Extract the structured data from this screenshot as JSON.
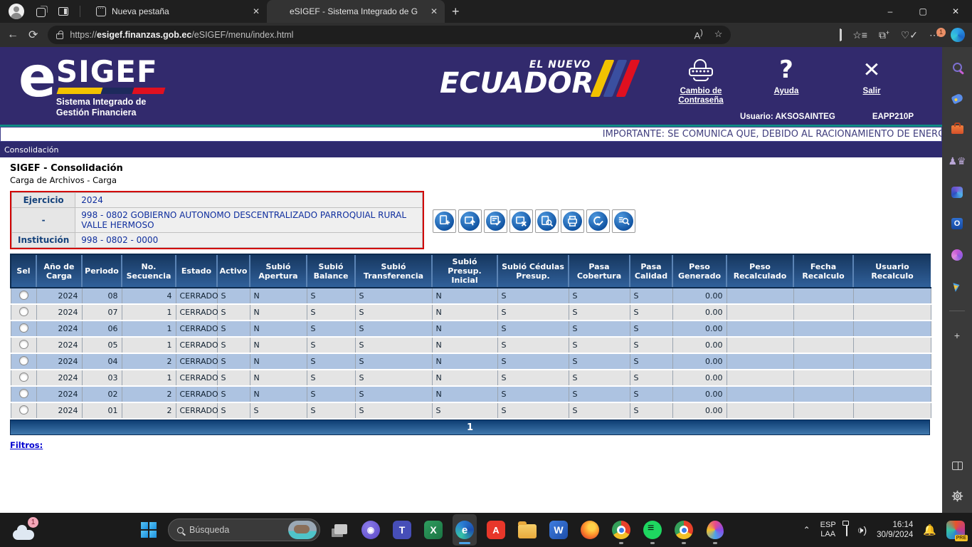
{
  "browser": {
    "tabs": [
      {
        "title": "Nueva pestaña",
        "active": false
      },
      {
        "title": "eSIGEF - Sistema Integrado de G",
        "active": true
      }
    ],
    "url": {
      "prefix": "https://",
      "domain": "esigef.finanzas.gob.ec",
      "path": "/eSIGEF/menu/index.html"
    },
    "settings_badge": "1",
    "window_controls": {
      "minimize": "–",
      "maximize": "▢",
      "close": "✕"
    }
  },
  "edge_sidebar": {
    "items": [
      {
        "name": "search-icon"
      },
      {
        "name": "shopping-icon"
      },
      {
        "name": "toolbox-icon"
      },
      {
        "name": "games-icon"
      },
      {
        "name": "m365-icon"
      },
      {
        "name": "outlook-icon"
      },
      {
        "name": "drop-icon"
      },
      {
        "name": "plane-icon"
      }
    ],
    "add_label": "+",
    "outlook_letter": "O"
  },
  "app_header": {
    "logo_e": "e",
    "logo_main": "SIGEF",
    "logo_sub1": "Sistema Integrado de",
    "logo_sub2": "Gestión Financiera",
    "ecuador_top": "EL NUEVO",
    "ecuador_main": "ECUADOR",
    "actions": [
      {
        "name": "change-password",
        "label": "Cambio de Contraseña"
      },
      {
        "name": "help",
        "label": "Ayuda",
        "glyph": "?"
      },
      {
        "name": "exit",
        "label": "Salir",
        "glyph": "✕"
      }
    ],
    "user_label": "Usuario: AKSOSAINTEG",
    "profile_code": "EAPP210P"
  },
  "marquee_text": "IMPORTANTE: SE COMUNICA QUE, DEBIDO AL RACIONAMIENTO DE ENERGÍ",
  "breadcrumb": "Consolidación",
  "page": {
    "title": "SIGEF - Consolidación",
    "subtitle": "Carga de Archivos - Carga"
  },
  "form": {
    "rows": [
      {
        "label": "Ejercicio",
        "value": "2024"
      },
      {
        "label": "-",
        "value": "998 - 0802 GOBIERNO AUTONOMO DESCENTRALIZADO PARROQUIAL RURAL VALLE HERMOSO"
      },
      {
        "label": "Institución",
        "value": "998 - 0802 - 0000"
      }
    ]
  },
  "action_toolbar": [
    {
      "name": "create-button"
    },
    {
      "name": "upload-button"
    },
    {
      "name": "validate-button"
    },
    {
      "name": "invalidate-button"
    },
    {
      "name": "consult-button"
    },
    {
      "name": "print-button"
    },
    {
      "name": "approve-button"
    },
    {
      "name": "detail-search-button"
    }
  ],
  "table": {
    "headers": [
      "Sel",
      "Año de\nCarga",
      "Periodo",
      "No.\nSecuencia",
      "Estado",
      "Activo",
      "Subió\nApertura",
      "Subió\nBalance",
      "Subió\nTransferencia",
      "Subió Presup.\nInicial",
      "Subió Cédulas\nPresup.",
      "Pasa\nCobertura",
      "Pasa\nCalidad",
      "Peso\nGenerado",
      "Peso\nRecalculado",
      "Fecha\nRecalculo",
      "Usuario\nRecalculo"
    ],
    "rows": [
      [
        "2024",
        "08",
        "4",
        "CERRADO",
        "S",
        "N",
        "S",
        "S",
        "N",
        "S",
        "S",
        "S",
        "0.00",
        "",
        "",
        ""
      ],
      [
        "2024",
        "07",
        "1",
        "CERRADO",
        "S",
        "N",
        "S",
        "S",
        "N",
        "S",
        "S",
        "S",
        "0.00",
        "",
        "",
        ""
      ],
      [
        "2024",
        "06",
        "1",
        "CERRADO",
        "S",
        "N",
        "S",
        "S",
        "N",
        "S",
        "S",
        "S",
        "0.00",
        "",
        "",
        ""
      ],
      [
        "2024",
        "05",
        "1",
        "CERRADO",
        "S",
        "N",
        "S",
        "S",
        "N",
        "S",
        "S",
        "S",
        "0.00",
        "",
        "",
        ""
      ],
      [
        "2024",
        "04",
        "2",
        "CERRADO",
        "S",
        "N",
        "S",
        "S",
        "N",
        "S",
        "S",
        "S",
        "0.00",
        "",
        "",
        ""
      ],
      [
        "2024",
        "03",
        "1",
        "CERRADO",
        "S",
        "N",
        "S",
        "S",
        "N",
        "S",
        "S",
        "S",
        "0.00",
        "",
        "",
        ""
      ],
      [
        "2024",
        "02",
        "2",
        "CERRADO",
        "S",
        "N",
        "S",
        "S",
        "N",
        "S",
        "S",
        "S",
        "0.00",
        "",
        "",
        ""
      ],
      [
        "2024",
        "01",
        "2",
        "CERRADO",
        "S",
        "S",
        "S",
        "S",
        "S",
        "S",
        "S",
        "S",
        "0.00",
        "",
        "",
        ""
      ]
    ],
    "page_number": "1"
  },
  "filters_link": "Filtros:",
  "taskbar": {
    "weather_badge": "1",
    "search_placeholder": "Búsqueda",
    "apps": [
      {
        "name": "task-view-icon"
      },
      {
        "name": "zoom-app-icon"
      },
      {
        "name": "teams-icon",
        "glyph": "T"
      },
      {
        "name": "excel-icon",
        "glyph": "X"
      },
      {
        "name": "edge-icon",
        "glyph": "e",
        "active": true
      },
      {
        "name": "acrobat-icon",
        "glyph": "A"
      },
      {
        "name": "file-explorer-icon"
      },
      {
        "name": "word-icon",
        "glyph": "W"
      },
      {
        "name": "firefox-icon"
      },
      {
        "name": "chrome-icon",
        "running": true
      },
      {
        "name": "spotify-icon",
        "running": true
      },
      {
        "name": "chrome-profile-icon",
        "running": true
      },
      {
        "name": "opera-icon",
        "running": true
      }
    ],
    "tray": {
      "language_line1": "ESP",
      "language_line2": "LAA",
      "time": "16:14",
      "date": "30/9/2024",
      "copilot_badge": "PRE"
    }
  }
}
